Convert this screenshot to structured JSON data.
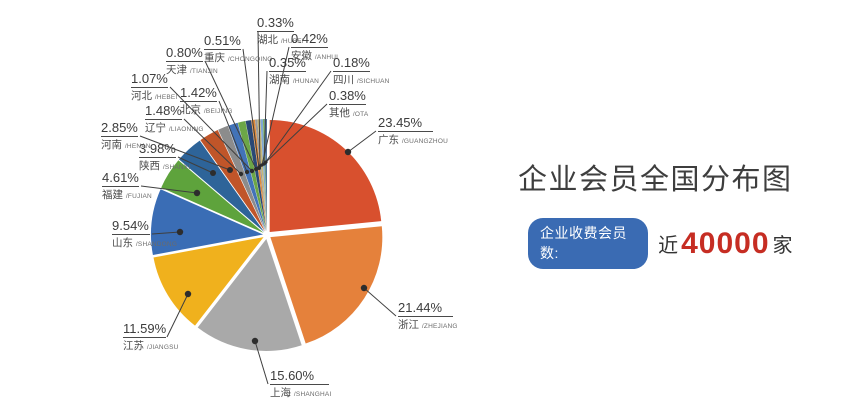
{
  "title": {
    "text": "企业会员全国分布图"
  },
  "badge": {
    "label": "企业收费会员数:",
    "prefix": "近",
    "count": "40000",
    "suffix": "家",
    "pill_color": "#3A6BB3",
    "count_color": "#C62D23"
  },
  "chart_data": {
    "type": "pie",
    "title": "企业会员全国分布图",
    "start_angle_deg": 0,
    "direction": "clockwise",
    "legend_position": "callout-labels",
    "slices": [
      {
        "label": "广东",
        "pinyin": "GUANGZHOU",
        "value": 23.45,
        "pct": "23.45%",
        "color": "#D8502E"
      },
      {
        "label": "浙江",
        "pinyin": "ZHEJIANG",
        "value": 21.44,
        "pct": "21.44%",
        "color": "#E5813B"
      },
      {
        "label": "上海",
        "pinyin": "SHANGHAI",
        "value": 15.6,
        "pct": "15.60%",
        "color": "#A9A9A9"
      },
      {
        "label": "江苏",
        "pinyin": "JIANGSU",
        "value": 11.59,
        "pct": "11.59%",
        "color": "#F0B11D"
      },
      {
        "label": "山东",
        "pinyin": "SHANDONG",
        "value": 9.54,
        "pct": "9.54%",
        "color": "#3A6DB5"
      },
      {
        "label": "福建",
        "pinyin": "FUJIAN",
        "value": 4.61,
        "pct": "4.61%",
        "color": "#5EA33C"
      },
      {
        "label": "陕西",
        "pinyin": "SHANXI",
        "value": 3.98,
        "pct": "3.98%",
        "color": "#2E6499"
      },
      {
        "label": "河南",
        "pinyin": "HENAN",
        "value": 2.85,
        "pct": "2.85%",
        "color": "#C05529"
      },
      {
        "label": "辽宁",
        "pinyin": "LIAONING",
        "value": 1.48,
        "pct": "1.48%",
        "color": "#8C8C8C"
      },
      {
        "label": "北京",
        "pinyin": "BEIJING",
        "value": 1.42,
        "pct": "1.42%",
        "color": "#4273B8"
      },
      {
        "label": "河北",
        "pinyin": "HEBEI",
        "value": 1.07,
        "pct": "1.07%",
        "color": "#6CA647"
      },
      {
        "label": "天津",
        "pinyin": "TIANJIN",
        "value": 0.8,
        "pct": "0.80%",
        "color": "#2A4875"
      },
      {
        "label": "重庆",
        "pinyin": "CHONGQING",
        "value": 0.51,
        "pct": "0.51%",
        "color": "#E08A3A"
      },
      {
        "label": "湖北",
        "pinyin": "HUBEI",
        "value": 0.33,
        "pct": "0.33%",
        "color": "#9B9B9B"
      },
      {
        "label": "安徽",
        "pinyin": "ANHUI",
        "value": 0.42,
        "pct": "0.42%",
        "color": "#C6B878"
      },
      {
        "label": "湖南",
        "pinyin": "HUNAN",
        "value": 0.35,
        "pct": "0.35%",
        "color": "#7FA6D5"
      },
      {
        "label": "四川",
        "pinyin": "SICHUAN",
        "value": 0.18,
        "pct": "0.18%",
        "color": "#7DB35A"
      },
      {
        "label": "其他",
        "pinyin": "OTA",
        "value": 0.38,
        "pct": "0.38%",
        "color": "#4C6E96"
      }
    ]
  }
}
